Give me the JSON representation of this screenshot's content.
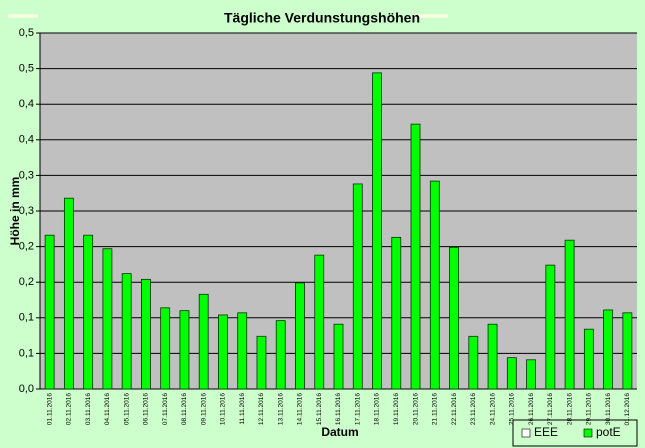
{
  "chart_data": {
    "type": "bar",
    "title": "Tägliche Verdunstungshöhen",
    "x_label": "Datum",
    "y_label": "Höhe in mm",
    "categories": [
      "01.11.2016",
      "02.11.2016",
      "03.11.2016",
      "04.11.2016",
      "05.11.2016",
      "06.11.2016",
      "07.11.2016",
      "08.11.2016",
      "09.11.2016",
      "10.11.2016",
      "11.11.2016",
      "12.11.2016",
      "13.11.2016",
      "14.11.2016",
      "15.11.2016",
      "16.11.2016",
      "17.11.2016",
      "18.11.2016",
      "19.11.2016",
      "20.11.2016",
      "21.11.2016",
      "22.11.2016",
      "23.11.2016",
      "24.11.2016",
      "25.11.2016",
      "26.11.2016",
      "27.11.2016",
      "28.11.2016",
      "29.11.2016",
      "30.11.2016",
      "01.12.2016"
    ],
    "series": [
      {
        "name": "EEE",
        "color": "#ffffff",
        "values": [
          null,
          null,
          null,
          null,
          null,
          null,
          null,
          null,
          null,
          null,
          null,
          null,
          null,
          null,
          null,
          null,
          null,
          null,
          null,
          null,
          null,
          null,
          null,
          null,
          null,
          null,
          null,
          null,
          null,
          null,
          null
        ]
      },
      {
        "name": "potE",
        "color": "#00ff00",
        "values": [
          0.216,
          0.268,
          0.216,
          0.197,
          0.162,
          0.154,
          0.114,
          0.11,
          0.133,
          0.104,
          0.107,
          0.074,
          0.096,
          0.149,
          0.188,
          0.091,
          0.288,
          0.444,
          0.213,
          0.372,
          0.292,
          0.199,
          0.074,
          0.091,
          0.044,
          0.041,
          0.174,
          0.209,
          0.084,
          0.111,
          0.107
        ]
      }
    ],
    "ylim": [
      0,
      0.5
    ],
    "yticks": [
      {
        "value": 0,
        "label": "0,0"
      },
      {
        "value": 0.05,
        "label": "0,1"
      },
      {
        "value": 0.1,
        "label": "0,1"
      },
      {
        "value": 0.15,
        "label": "0,2"
      },
      {
        "value": 0.2,
        "label": "0,2"
      },
      {
        "value": 0.25,
        "label": "0,3"
      },
      {
        "value": 0.3,
        "label": "0,3"
      },
      {
        "value": 0.35,
        "label": "0,4"
      },
      {
        "value": 0.4,
        "label": "0,4"
      },
      {
        "value": 0.45,
        "label": "0,5"
      },
      {
        "value": 0.5,
        "label": "0,5"
      }
    ],
    "grid": true,
    "legend": "bottom-right"
  }
}
